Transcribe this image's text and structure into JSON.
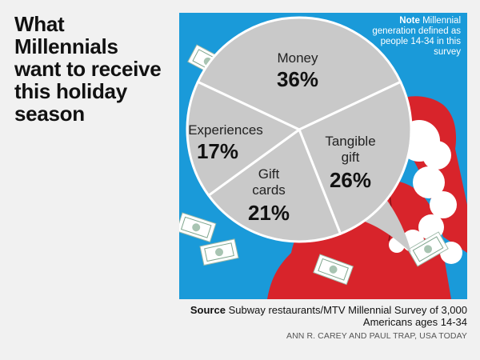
{
  "headline": "What Millennials want to receive this holiday season",
  "note": {
    "label": "Note",
    "text": "Millennial generation defined as people 14-34 in this survey"
  },
  "source": {
    "label": "Source",
    "text": "Subway restaurants/MTV Millennial Survey of 3,000 Americans ages 14-34"
  },
  "credit": "ANN R. CAREY AND PAUL TRAP, USA TODAY",
  "colors": {
    "background_blue": "#1a9ad9",
    "pie_gray": "#c9c9c9",
    "divider": "#ffffff",
    "santa_red": "#d8242b"
  },
  "chart_data": {
    "type": "pie",
    "title": "What Millennials want to receive this holiday season",
    "slices": [
      {
        "label": "Money",
        "value": 36,
        "display": "36%"
      },
      {
        "label": "Tangible gift",
        "value": 26,
        "display": "26%"
      },
      {
        "label": "Gift cards",
        "value": 21,
        "display": "21%"
      },
      {
        "label": "Experiences",
        "value": 17,
        "display": "17%"
      }
    ]
  }
}
